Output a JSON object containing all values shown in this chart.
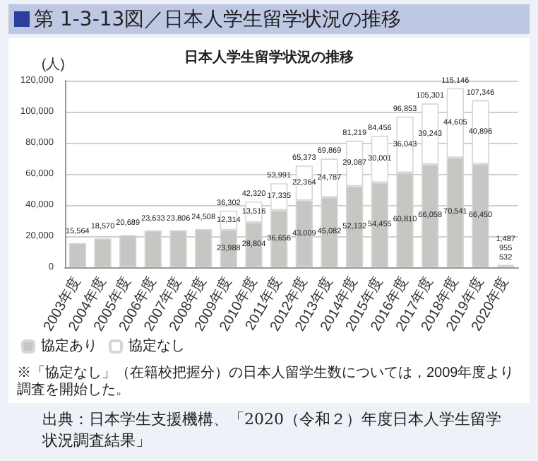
{
  "chart_data": {
    "type": "bar",
    "title": "第 1-3-13図／日本人学生留学状況の推移",
    "subtitle": "日本人学生留学状況の推移",
    "ylabel": "(人)",
    "categories": [
      "2003年度",
      "2004年度",
      "2005年度",
      "2006年度",
      "2007年度",
      "2008年度",
      "2009年度",
      "2010年度",
      "2011年度",
      "2012年度",
      "2013年度",
      "2014年度",
      "2015年度",
      "2016年度",
      "2017年度",
      "2018年度",
      "2019年度",
      "2020年度"
    ],
    "series": [
      {
        "name": "協定あり",
        "color": "#c8c6c3",
        "values": [
          15564,
          18570,
          20689,
          23633,
          23806,
          24508,
          23988,
          28804,
          36656,
          43009,
          45082,
          52132,
          54455,
          60810,
          66058,
          70541,
          66450,
          955
        ],
        "value_labels": [
          "15,564",
          "18,570",
          "20,689",
          "23,633",
          "23,806",
          "24,508",
          "23,988",
          "28,804",
          "36,656",
          "43,009",
          "45,082",
          "52,132",
          "54,455",
          "60,810",
          "66,058",
          "70,541",
          "66,450",
          "955"
        ]
      },
      {
        "name": "協定なし",
        "color": "#ffffff",
        "values": [
          null,
          null,
          null,
          null,
          null,
          null,
          12314,
          13516,
          17335,
          22364,
          24787,
          29087,
          30001,
          36043,
          39243,
          44605,
          40896,
          532
        ],
        "value_labels": [
          null,
          null,
          null,
          null,
          null,
          null,
          "12,314",
          "13,516",
          "17,335",
          "22,364",
          "24,787",
          "29,087",
          "30,001",
          "36,043",
          "39,243",
          "44,605",
          "40,896",
          "532"
        ]
      }
    ],
    "stacked": true,
    "totals": [
      null,
      null,
      null,
      null,
      null,
      null,
      "36,302",
      "42,320",
      "53,991",
      "65,373",
      "69,869",
      "81,219",
      "84,456",
      "96,853",
      "105,301",
      "115,146",
      "107,346",
      "1,487"
    ],
    "ylim": [
      0,
      120000
    ],
    "yticks": [
      0,
      {
        "value": 20000,
        "label": "20,000"
      },
      {
        "value": 40000,
        "label": "40,000"
      },
      {
        "value": 60000,
        "label": "60,000"
      },
      {
        "value": 80000,
        "label": "80,000"
      },
      {
        "value": 100000,
        "label": "100,000"
      },
      {
        "value": 120000,
        "label": "120,000"
      }
    ],
    "grid": "y",
    "legend": "bottom left",
    "annotations": [
      "※「協定なし」（在籍校把握分）の日本人留学生数については，2009年度より調査を開始した。",
      "出典：日本学生支援機構、「2020（令和２）年度日本人学生留学状況調査結果」"
    ]
  }
}
